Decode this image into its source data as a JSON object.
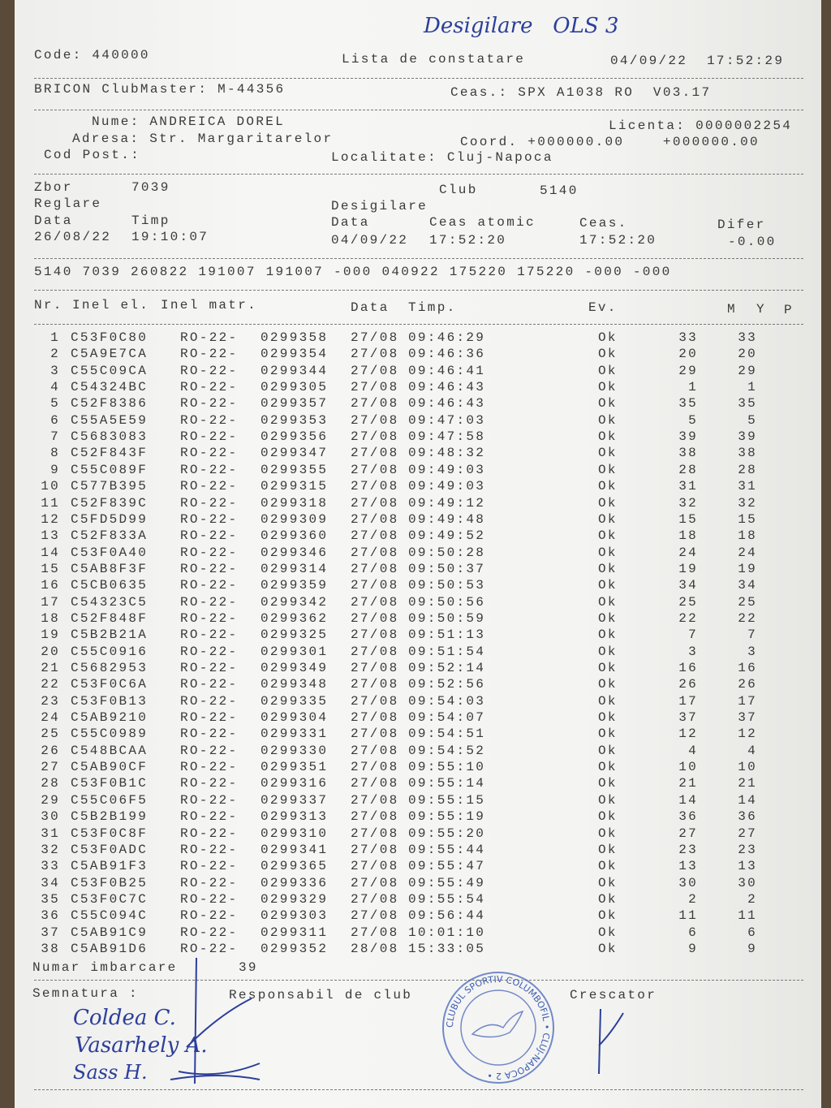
{
  "handwritten_note": "Desigilare   OLS 3",
  "header": {
    "code": "Code: 440000",
    "title": "Lista de constatare",
    "datetime": "04/09/22  17:52:29",
    "device": "BRICON ClubMaster: M-44356",
    "clock": "Ceas.: SPX A1038 RO  V03.17"
  },
  "owner": {
    "name": "Nume: ANDREICA DOREL",
    "license": "Licenta: 0000002254",
    "address": "Adresa: Str. Margaritarelor",
    "coords": "Coord. +000000.00    +000000.00",
    "postal_code": "Cod Post.:",
    "locality": "Localitate: Cluj-Napoca"
  },
  "flight": {
    "zbor_label": "Zbor",
    "zbor": "7039",
    "club_label": "Club",
    "club": "5140",
    "reglare_label": "Reglare",
    "desigilare_label": "Desigilare",
    "data_label": "Data",
    "timp_label": "Timp",
    "reglare_data": "26/08/22",
    "reglare_timp": "19:10:07",
    "desig_data_label": "Data",
    "ceas_atomic_label": "Ceas atomic",
    "ceas_label": "Ceas.",
    "difer_label": "Difer",
    "desig_data": "04/09/22",
    "ceas_atomic": "17:52:20",
    "ceas": "17:52:20",
    "difer": "-0.00",
    "code_line": "5140 7039 260822 191007 191007 -000 040922 175220 175220 -000 -000"
  },
  "columns": {
    "nr": "Nr.",
    "inel_el": "Inel el.",
    "inel_matr": "Inel matr.",
    "data": "Data",
    "timp": "Timp.",
    "ev": "Ev.",
    "m": "M",
    "y": "Y",
    "p": "P"
  },
  "rows": [
    [
      "1",
      "C53F0C80",
      "RO-22-",
      "0299358",
      "27/08",
      "09:46:29",
      "Ok",
      "33",
      "33"
    ],
    [
      "2",
      "C5A9E7CA",
      "RO-22-",
      "0299354",
      "27/08",
      "09:46:36",
      "Ok",
      "20",
      "20"
    ],
    [
      "3",
      "C55C09CA",
      "RO-22-",
      "0299344",
      "27/08",
      "09:46:41",
      "Ok",
      "29",
      "29"
    ],
    [
      "4",
      "C54324BC",
      "RO-22-",
      "0299305",
      "27/08",
      "09:46:43",
      "Ok",
      "1",
      "1"
    ],
    [
      "5",
      "C52F8386",
      "RO-22-",
      "0299357",
      "27/08",
      "09:46:43",
      "Ok",
      "35",
      "35"
    ],
    [
      "6",
      "C55A5E59",
      "RO-22-",
      "0299353",
      "27/08",
      "09:47:03",
      "Ok",
      "5",
      "5"
    ],
    [
      "7",
      "C5683083",
      "RO-22-",
      "0299356",
      "27/08",
      "09:47:58",
      "Ok",
      "39",
      "39"
    ],
    [
      "8",
      "C52F843F",
      "RO-22-",
      "0299347",
      "27/08",
      "09:48:32",
      "Ok",
      "38",
      "38"
    ],
    [
      "9",
      "C55C089F",
      "RO-22-",
      "0299355",
      "27/08",
      "09:49:03",
      "Ok",
      "28",
      "28"
    ],
    [
      "10",
      "C577B395",
      "RO-22-",
      "0299315",
      "27/08",
      "09:49:03",
      "Ok",
      "31",
      "31"
    ],
    [
      "11",
      "C52F839C",
      "RO-22-",
      "0299318",
      "27/08",
      "09:49:12",
      "Ok",
      "32",
      "32"
    ],
    [
      "12",
      "C5FD5D99",
      "RO-22-",
      "0299309",
      "27/08",
      "09:49:48",
      "Ok",
      "15",
      "15"
    ],
    [
      "13",
      "C52F833A",
      "RO-22-",
      "0299360",
      "27/08",
      "09:49:52",
      "Ok",
      "18",
      "18"
    ],
    [
      "14",
      "C53F0A40",
      "RO-22-",
      "0299346",
      "27/08",
      "09:50:28",
      "Ok",
      "24",
      "24"
    ],
    [
      "15",
      "C5AB8F3F",
      "RO-22-",
      "0299314",
      "27/08",
      "09:50:37",
      "Ok",
      "19",
      "19"
    ],
    [
      "16",
      "C5CB0635",
      "RO-22-",
      "0299359",
      "27/08",
      "09:50:53",
      "Ok",
      "34",
      "34"
    ],
    [
      "17",
      "C54323C5",
      "RO-22-",
      "0299342",
      "27/08",
      "09:50:56",
      "Ok",
      "25",
      "25"
    ],
    [
      "18",
      "C52F848F",
      "RO-22-",
      "0299362",
      "27/08",
      "09:50:59",
      "Ok",
      "22",
      "22"
    ],
    [
      "19",
      "C5B2B21A",
      "RO-22-",
      "0299325",
      "27/08",
      "09:51:13",
      "Ok",
      "7",
      "7"
    ],
    [
      "20",
      "C55C0916",
      "RO-22-",
      "0299301",
      "27/08",
      "09:51:54",
      "Ok",
      "3",
      "3"
    ],
    [
      "21",
      "C5682953",
      "RO-22-",
      "0299349",
      "27/08",
      "09:52:14",
      "Ok",
      "16",
      "16"
    ],
    [
      "22",
      "C53F0C6A",
      "RO-22-",
      "0299348",
      "27/08",
      "09:52:56",
      "Ok",
      "26",
      "26"
    ],
    [
      "23",
      "C53F0B13",
      "RO-22-",
      "0299335",
      "27/08",
      "09:54:03",
      "Ok",
      "17",
      "17"
    ],
    [
      "24",
      "C5AB9210",
      "RO-22-",
      "0299304",
      "27/08",
      "09:54:07",
      "Ok",
      "37",
      "37"
    ],
    [
      "25",
      "C55C0989",
      "RO-22-",
      "0299331",
      "27/08",
      "09:54:51",
      "Ok",
      "12",
      "12"
    ],
    [
      "26",
      "C548BCAA",
      "RO-22-",
      "0299330",
      "27/08",
      "09:54:52",
      "Ok",
      "4",
      "4"
    ],
    [
      "27",
      "C5AB90CF",
      "RO-22-",
      "0299351",
      "27/08",
      "09:55:10",
      "Ok",
      "10",
      "10"
    ],
    [
      "28",
      "C53F0B1C",
      "RO-22-",
      "0299316",
      "27/08",
      "09:55:14",
      "Ok",
      "21",
      "21"
    ],
    [
      "29",
      "C55C06F5",
      "RO-22-",
      "0299337",
      "27/08",
      "09:55:15",
      "Ok",
      "14",
      "14"
    ],
    [
      "30",
      "C5B2B199",
      "RO-22-",
      "0299313",
      "27/08",
      "09:55:19",
      "Ok",
      "36",
      "36"
    ],
    [
      "31",
      "C53F0C8F",
      "RO-22-",
      "0299310",
      "27/08",
      "09:55:20",
      "Ok",
      "27",
      "27"
    ],
    [
      "32",
      "C53F0ADC",
      "RO-22-",
      "0299341",
      "27/08",
      "09:55:44",
      "Ok",
      "23",
      "23"
    ],
    [
      "33",
      "C5AB91F3",
      "RO-22-",
      "0299365",
      "27/08",
      "09:55:47",
      "Ok",
      "13",
      "13"
    ],
    [
      "34",
      "C53F0B25",
      "RO-22-",
      "0299336",
      "27/08",
      "09:55:49",
      "Ok",
      "30",
      "30"
    ],
    [
      "35",
      "C53F0C7C",
      "RO-22-",
      "0299329",
      "27/08",
      "09:55:54",
      "Ok",
      "2",
      "2"
    ],
    [
      "36",
      "C55C094C",
      "RO-22-",
      "0299303",
      "27/08",
      "09:56:44",
      "Ok",
      "11",
      "11"
    ],
    [
      "37",
      "C5AB91C9",
      "RO-22-",
      "0299311",
      "27/08",
      "10:01:10",
      "Ok",
      "6",
      "6"
    ],
    [
      "38",
      "C5AB91D6",
      "RO-22-",
      "0299352",
      "28/08",
      "15:33:05",
      "Ok",
      "9",
      "9"
    ]
  ],
  "footer": {
    "numar_imbarcare_label": "Numar imbarcare",
    "numar_imbarcare": "39",
    "semnatura": "Semnatura :",
    "responsabil": "Responsabil de club",
    "crescator": "Crescator"
  },
  "signatures": [
    "Coldea C.",
    "Vasarhely A.",
    "Sass H."
  ],
  "stamp": {
    "text": "CLUBUL SPORTIV COLUMBOFIL • CLUJ-NAPOCA 2 •",
    "color": "#3b5bb5"
  },
  "ink_color": "#2c3f9a"
}
